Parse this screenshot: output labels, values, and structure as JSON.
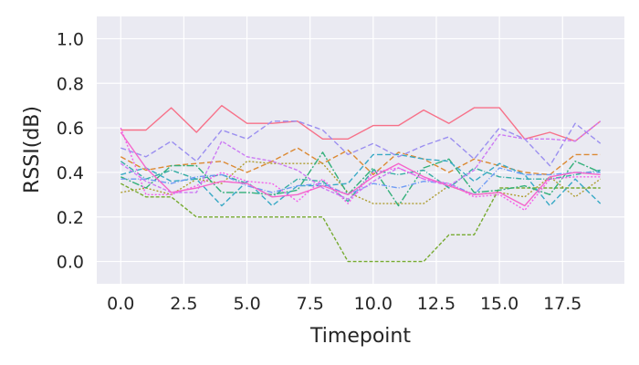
{
  "chart_data": {
    "type": "line",
    "title": "",
    "xlabel": "Timepoint",
    "ylabel": "RSSI(dB)",
    "xlim": [
      -0.95,
      19.95
    ],
    "ylim": [
      -0.1,
      1.1
    ],
    "xticks": [
      0.0,
      2.5,
      5.0,
      7.5,
      10.0,
      12.5,
      15.0,
      17.5
    ],
    "xtick_labels": [
      "0.0",
      "2.5",
      "5.0",
      "7.5",
      "10.0",
      "12.5",
      "15.0",
      "17.5"
    ],
    "yticks": [
      0.0,
      0.2,
      0.4,
      0.6,
      0.8,
      1.0
    ],
    "ytick_labels": [
      "0.0",
      "0.2",
      "0.4",
      "0.6",
      "0.8",
      "1.0"
    ],
    "grid": true,
    "legend": "none",
    "background": "#eaeaf2",
    "x": [
      0,
      1,
      2,
      3,
      4,
      5,
      6,
      7,
      8,
      9,
      10,
      11,
      12,
      13,
      14,
      15,
      16,
      17,
      18,
      19
    ],
    "series": [
      {
        "color": "#f77189",
        "dash": "solid",
        "values": [
          0.59,
          0.59,
          0.69,
          0.58,
          0.7,
          0.62,
          0.62,
          0.63,
          0.55,
          0.55,
          0.61,
          0.61,
          0.68,
          0.62,
          0.69,
          0.69,
          0.55,
          0.58,
          0.54,
          0.63
        ]
      },
      {
        "color": "#dc8932",
        "dash": "6,3",
        "values": [
          0.47,
          0.41,
          0.43,
          0.44,
          0.45,
          0.4,
          0.45,
          0.51,
          0.44,
          0.5,
          0.39,
          0.49,
          0.46,
          0.4,
          0.46,
          0.43,
          0.4,
          0.39,
          0.48,
          0.48
        ]
      },
      {
        "color": "#ae9d31",
        "dash": "2,2",
        "values": [
          0.31,
          0.33,
          0.3,
          0.37,
          0.35,
          0.45,
          0.44,
          0.44,
          0.44,
          0.31,
          0.26,
          0.26,
          0.26,
          0.34,
          0.3,
          0.31,
          0.29,
          0.38,
          0.29,
          0.37
        ]
      },
      {
        "color": "#77ab31",
        "dash": "4,2",
        "values": [
          0.35,
          0.29,
          0.29,
          0.2,
          0.2,
          0.2,
          0.2,
          0.2,
          0.2,
          0.0,
          0.0,
          0.0,
          0.0,
          0.12,
          0.12,
          0.33,
          0.33,
          0.33,
          0.33,
          0.33
        ]
      },
      {
        "color": "#33b07a",
        "dash": "8,2,2,2",
        "values": [
          0.38,
          0.33,
          0.43,
          0.43,
          0.31,
          0.31,
          0.3,
          0.32,
          0.49,
          0.3,
          0.42,
          0.25,
          0.42,
          0.46,
          0.31,
          0.32,
          0.34,
          0.3,
          0.45,
          0.4
        ]
      },
      {
        "color": "#36ada4",
        "dash": "6,2,1,2",
        "values": [
          0.45,
          0.37,
          0.41,
          0.37,
          0.39,
          0.35,
          0.29,
          0.37,
          0.36,
          0.27,
          0.41,
          0.39,
          0.41,
          0.33,
          0.42,
          0.38,
          0.37,
          0.37,
          0.39,
          0.41
        ]
      },
      {
        "color": "#38a9c5",
        "dash": "6,3",
        "values": [
          0.39,
          0.42,
          0.36,
          0.37,
          0.25,
          0.36,
          0.25,
          0.34,
          0.34,
          0.35,
          0.48,
          0.48,
          0.46,
          0.45,
          0.36,
          0.44,
          0.39,
          0.25,
          0.37,
          0.26
        ]
      },
      {
        "color": "#6e9bf4",
        "dash": "6,2,1,2",
        "values": [
          0.37,
          0.37,
          0.35,
          0.38,
          0.39,
          0.34,
          0.31,
          0.34,
          0.35,
          0.3,
          0.35,
          0.33,
          0.36,
          0.35,
          0.3,
          0.42,
          0.39,
          0.39,
          0.4,
          0.4
        ]
      },
      {
        "color": "#9b8ff0",
        "dash": "6,3",
        "values": [
          0.51,
          0.47,
          0.54,
          0.45,
          0.59,
          0.55,
          0.63,
          0.63,
          0.59,
          0.48,
          0.53,
          0.47,
          0.52,
          0.56,
          0.46,
          0.6,
          0.55,
          0.43,
          0.62,
          0.53
        ]
      },
      {
        "color": "#cc7af4",
        "dash": "4,2",
        "values": [
          0.44,
          0.36,
          0.31,
          0.31,
          0.54,
          0.47,
          0.45,
          0.41,
          0.33,
          0.28,
          0.36,
          0.42,
          0.37,
          0.34,
          0.41,
          0.57,
          0.55,
          0.55,
          0.54,
          0.63
        ]
      },
      {
        "color": "#f45deb",
        "dash": "2,2",
        "values": [
          0.6,
          0.3,
          0.3,
          0.34,
          0.4,
          0.36,
          0.35,
          0.27,
          0.37,
          0.26,
          0.4,
          0.42,
          0.37,
          0.35,
          0.29,
          0.3,
          0.23,
          0.37,
          0.38,
          0.38
        ]
      },
      {
        "color": "#f565cc",
        "dash": "solid",
        "values": [
          0.58,
          0.42,
          0.31,
          0.33,
          0.36,
          0.35,
          0.29,
          0.3,
          0.34,
          0.3,
          0.38,
          0.44,
          0.38,
          0.34,
          0.3,
          0.31,
          0.25,
          0.38,
          0.4,
          0.39
        ]
      }
    ]
  }
}
